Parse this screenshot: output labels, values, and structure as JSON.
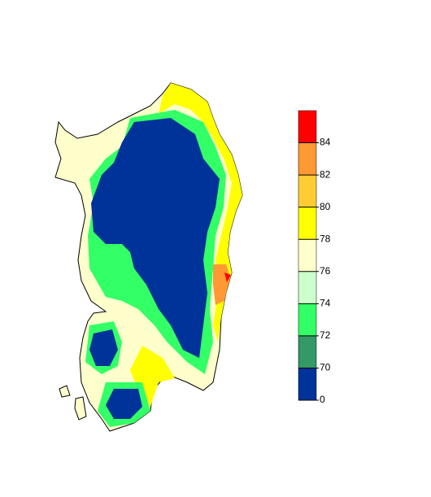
{
  "legend": {
    "colors": [
      "#003399",
      "#339966",
      "#33ff66",
      "#ccffcc",
      "#ffffcc",
      "#ffff00",
      "#ffcc33",
      "#ff9933",
      "#ff0000"
    ],
    "ticks": [
      0,
      70,
      72,
      74,
      76,
      78,
      80,
      82,
      84
    ]
  }
}
